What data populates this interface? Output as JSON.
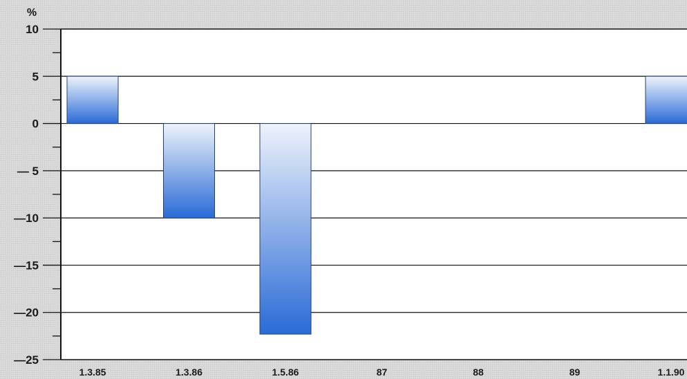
{
  "chart_data": {
    "type": "bar",
    "ylabel": "%",
    "ylim": [
      -25,
      10
    ],
    "yticks": [
      {
        "value": 10,
        "label": "10"
      },
      {
        "value": 5,
        "label": "5"
      },
      {
        "value": 0,
        "label": "0"
      },
      {
        "value": -5,
        "label": "— 5"
      },
      {
        "value": -10,
        "label": "—10"
      },
      {
        "value": -15,
        "label": "—15"
      },
      {
        "value": -20,
        "label": "—20"
      },
      {
        "value": -25,
        "label": "—25"
      }
    ],
    "categories": [
      "1.3.85",
      "1.3.86",
      "1.5.86",
      "87",
      "88",
      "89",
      "1.1.90"
    ],
    "bars": [
      {
        "category": "1.3.85",
        "value": 5
      },
      {
        "category": "1.3.86",
        "value": -10
      },
      {
        "category": "1.5.86",
        "value": -22.3
      },
      {
        "category": "1.1.90",
        "value": 5
      }
    ],
    "grid": true,
    "colors": {
      "bar_light": "#eef3fb",
      "bar_dark": "#2a6bd6",
      "axis": "#111111"
    }
  }
}
